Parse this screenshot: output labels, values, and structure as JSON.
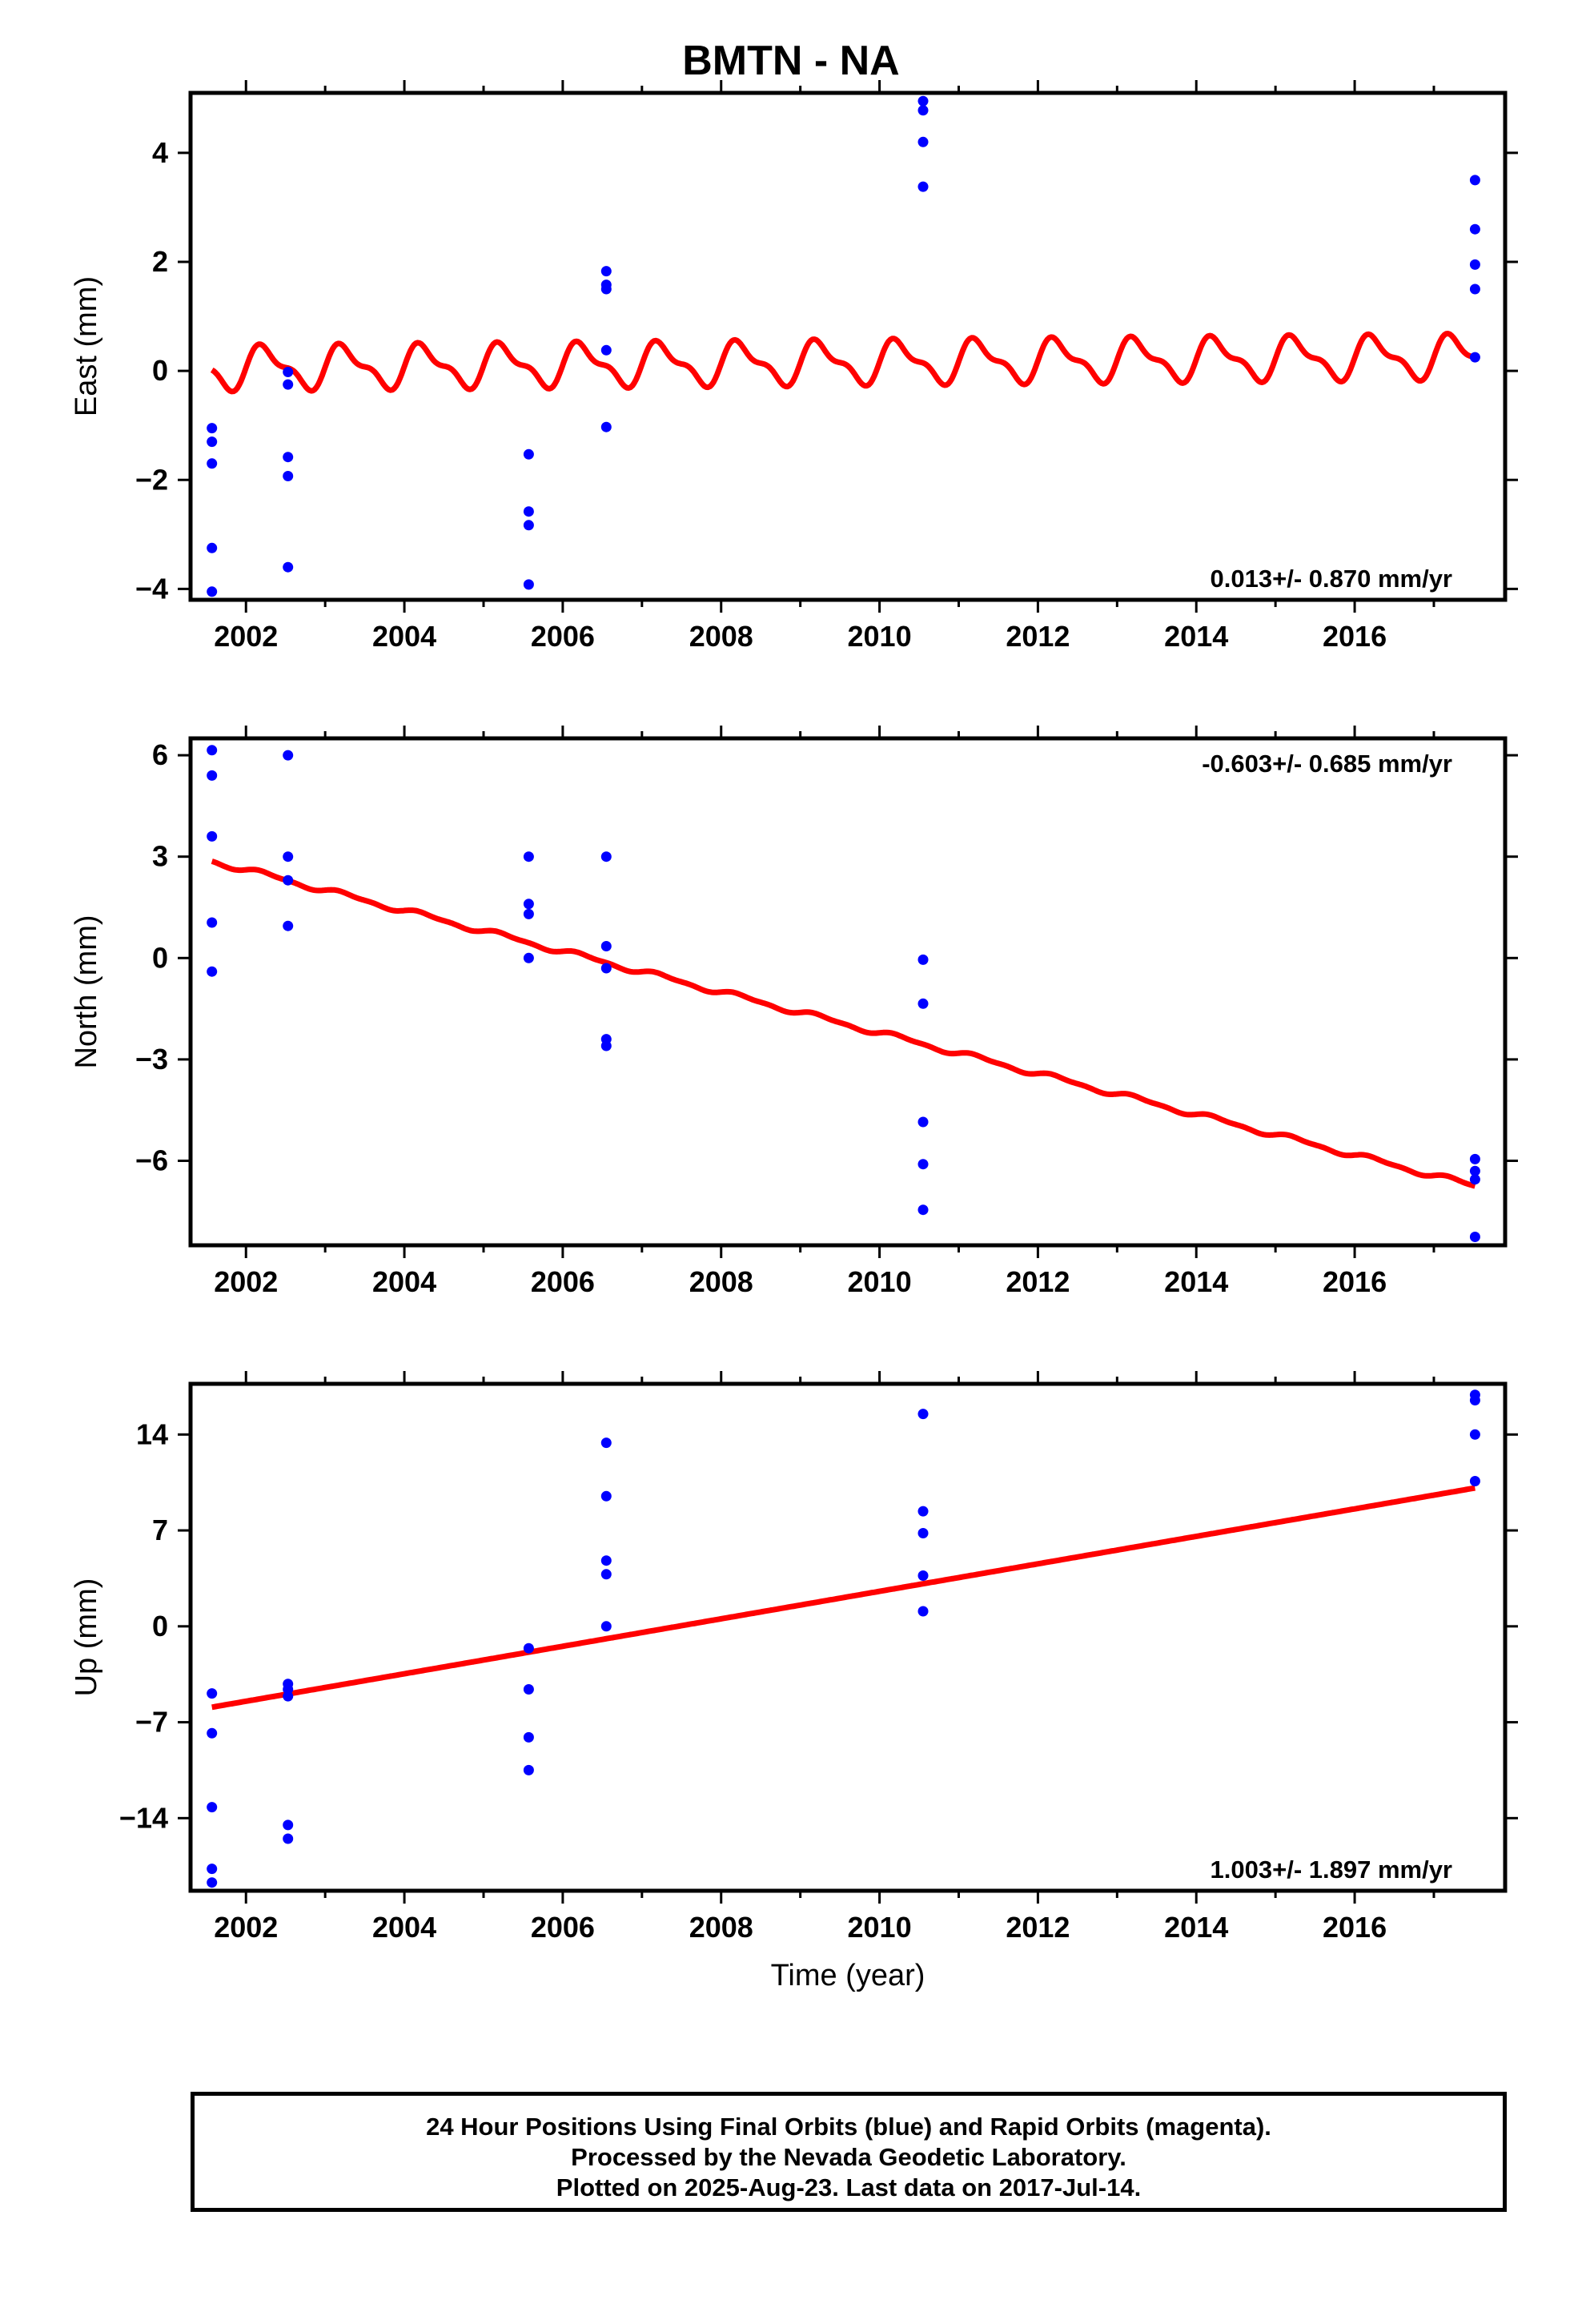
{
  "title": "BMTN - NA",
  "colors": {
    "data_points": "#0000ff",
    "model_line": "#ff0000",
    "frame": "#000000"
  },
  "chart_data": [
    {
      "type": "scatter",
      "ylabel": "East (mm)",
      "xlabel": "",
      "xlim": [
        2001.3,
        2017.9
      ],
      "ylim": [
        -4.2,
        5.1
      ],
      "xticks": [
        2002,
        2004,
        2006,
        2008,
        2010,
        2012,
        2014,
        2016
      ],
      "yticks": [
        -4,
        -2,
        0,
        2,
        4
      ],
      "ytick_labels": [
        "−4",
        "−2",
        "0",
        "2",
        "4"
      ],
      "annotation": "0.013+/- 0.870 mm/yr",
      "annotation_position": "bottom-right",
      "series": [
        {
          "values": [
            [
              2001.57,
              -1.05
            ],
            [
              2001.57,
              -1.3
            ],
            [
              2001.57,
              -1.7
            ],
            [
              2001.57,
              -3.25
            ],
            [
              2001.57,
              -4.05
            ],
            [
              2002.53,
              -0.02
            ],
            [
              2002.53,
              -0.25
            ],
            [
              2002.53,
              -1.58
            ],
            [
              2002.53,
              -1.93
            ],
            [
              2002.53,
              -3.6
            ],
            [
              2005.57,
              -1.53
            ],
            [
              2005.57,
              -2.58
            ],
            [
              2005.57,
              -2.83
            ],
            [
              2005.57,
              -3.92
            ],
            [
              2006.55,
              1.83
            ],
            [
              2006.55,
              1.58
            ],
            [
              2006.55,
              1.5
            ],
            [
              2006.55,
              0.38
            ],
            [
              2006.55,
              -1.03
            ],
            [
              2010.55,
              4.95
            ],
            [
              2010.55,
              4.78
            ],
            [
              2010.55,
              4.2
            ],
            [
              2010.55,
              3.38
            ],
            [
              2017.52,
              3.5
            ],
            [
              2017.52,
              2.6
            ],
            [
              2017.52,
              1.95
            ],
            [
              2017.52,
              1.5
            ],
            [
              2017.52,
              0.25
            ]
          ]
        }
      ],
      "model": {
        "x0": 2001.57,
        "x1": 2017.52,
        "intercept": 0.05,
        "rate": 0.013,
        "annual_amp": 0.35,
        "semiannual_amp": 0.15
      }
    },
    {
      "type": "scatter",
      "ylabel": "North (mm)",
      "xlabel": "",
      "xlim": [
        2001.3,
        2017.9
      ],
      "ylim": [
        -8.5,
        6.5
      ],
      "xticks": [
        2002,
        2004,
        2006,
        2008,
        2010,
        2012,
        2014,
        2016
      ],
      "yticks": [
        -6,
        -3,
        0,
        3,
        6
      ],
      "ytick_labels": [
        "−6",
        "−3",
        "0",
        "3",
        "6"
      ],
      "annotation": "-0.603+/- 0.685 mm/yr",
      "annotation_position": "top-right",
      "series": [
        {
          "values": [
            [
              2001.57,
              6.15
            ],
            [
              2001.57,
              5.4
            ],
            [
              2001.57,
              3.6
            ],
            [
              2001.57,
              1.05
            ],
            [
              2001.57,
              -0.4
            ],
            [
              2002.53,
              6.0
            ],
            [
              2002.53,
              3.0
            ],
            [
              2002.53,
              2.3
            ],
            [
              2002.53,
              0.95
            ],
            [
              2005.57,
              3.0
            ],
            [
              2005.57,
              1.6
            ],
            [
              2005.57,
              1.3
            ],
            [
              2005.57,
              0.0
            ],
            [
              2006.55,
              3.0
            ],
            [
              2006.55,
              0.35
            ],
            [
              2006.55,
              -0.3
            ],
            [
              2006.55,
              -2.4
            ],
            [
              2006.55,
              -2.6
            ],
            [
              2010.55,
              -0.05
            ],
            [
              2010.55,
              -1.35
            ],
            [
              2010.55,
              -4.85
            ],
            [
              2010.55,
              -6.1
            ],
            [
              2010.55,
              -7.45
            ],
            [
              2017.52,
              -5.95
            ],
            [
              2017.52,
              -6.3
            ],
            [
              2017.52,
              -6.55
            ],
            [
              2017.52,
              -8.25
            ]
          ]
        }
      ],
      "model": {
        "x0": 2001.57,
        "x1": 2017.52,
        "intercept": 2.87,
        "rate": -0.603,
        "annual_amp": 0.07,
        "semiannual_amp": 0.03
      }
    },
    {
      "type": "scatter",
      "ylabel": "Up (mm)",
      "xlabel": "Time (year)",
      "xlim": [
        2001.3,
        2017.9
      ],
      "ylim": [
        -19.3,
        17.7
      ],
      "xticks": [
        2002,
        2004,
        2006,
        2008,
        2010,
        2012,
        2014,
        2016
      ],
      "yticks": [
        -14,
        -7,
        0,
        7,
        14
      ],
      "ytick_labels": [
        "−14",
        "−7",
        "0",
        "7",
        "14"
      ],
      "annotation": "1.003+/- 1.897 mm/yr",
      "annotation_position": "bottom-right",
      "series": [
        {
          "values": [
            [
              2001.57,
              -4.9
            ],
            [
              2001.57,
              -7.8
            ],
            [
              2001.57,
              -13.2
            ],
            [
              2001.57,
              -17.7
            ],
            [
              2001.57,
              -18.7
            ],
            [
              2002.53,
              -4.2
            ],
            [
              2002.53,
              -4.6
            ],
            [
              2002.53,
              -5.1
            ],
            [
              2002.53,
              -14.5
            ],
            [
              2002.53,
              -15.5
            ],
            [
              2005.57,
              -1.6
            ],
            [
              2005.57,
              -4.6
            ],
            [
              2005.57,
              -8.1
            ],
            [
              2005.57,
              -10.5
            ],
            [
              2006.55,
              13.4
            ],
            [
              2006.55,
              9.5
            ],
            [
              2006.55,
              4.8
            ],
            [
              2006.55,
              3.8
            ],
            [
              2006.55,
              0.0
            ],
            [
              2010.55,
              15.5
            ],
            [
              2010.55,
              8.4
            ],
            [
              2010.55,
              6.8
            ],
            [
              2010.55,
              3.7
            ],
            [
              2010.55,
              1.1
            ],
            [
              2017.52,
              16.9
            ],
            [
              2017.52,
              16.5
            ],
            [
              2017.52,
              14.0
            ],
            [
              2017.52,
              10.6
            ]
          ]
        }
      ],
      "model": {
        "x0": 2001.57,
        "x1": 2017.52,
        "intercept": -5.9,
        "rate": 1.003,
        "annual_amp": 0.0,
        "semiannual_amp": 0.0
      }
    }
  ],
  "footer": {
    "line1": "24 Hour Positions Using Final Orbits (blue) and Rapid Orbits (magenta).",
    "line2": "Processed by the Nevada Geodetic Laboratory.",
    "line3": "Plotted on 2025-Aug-23. Last data on 2017-Jul-14."
  }
}
